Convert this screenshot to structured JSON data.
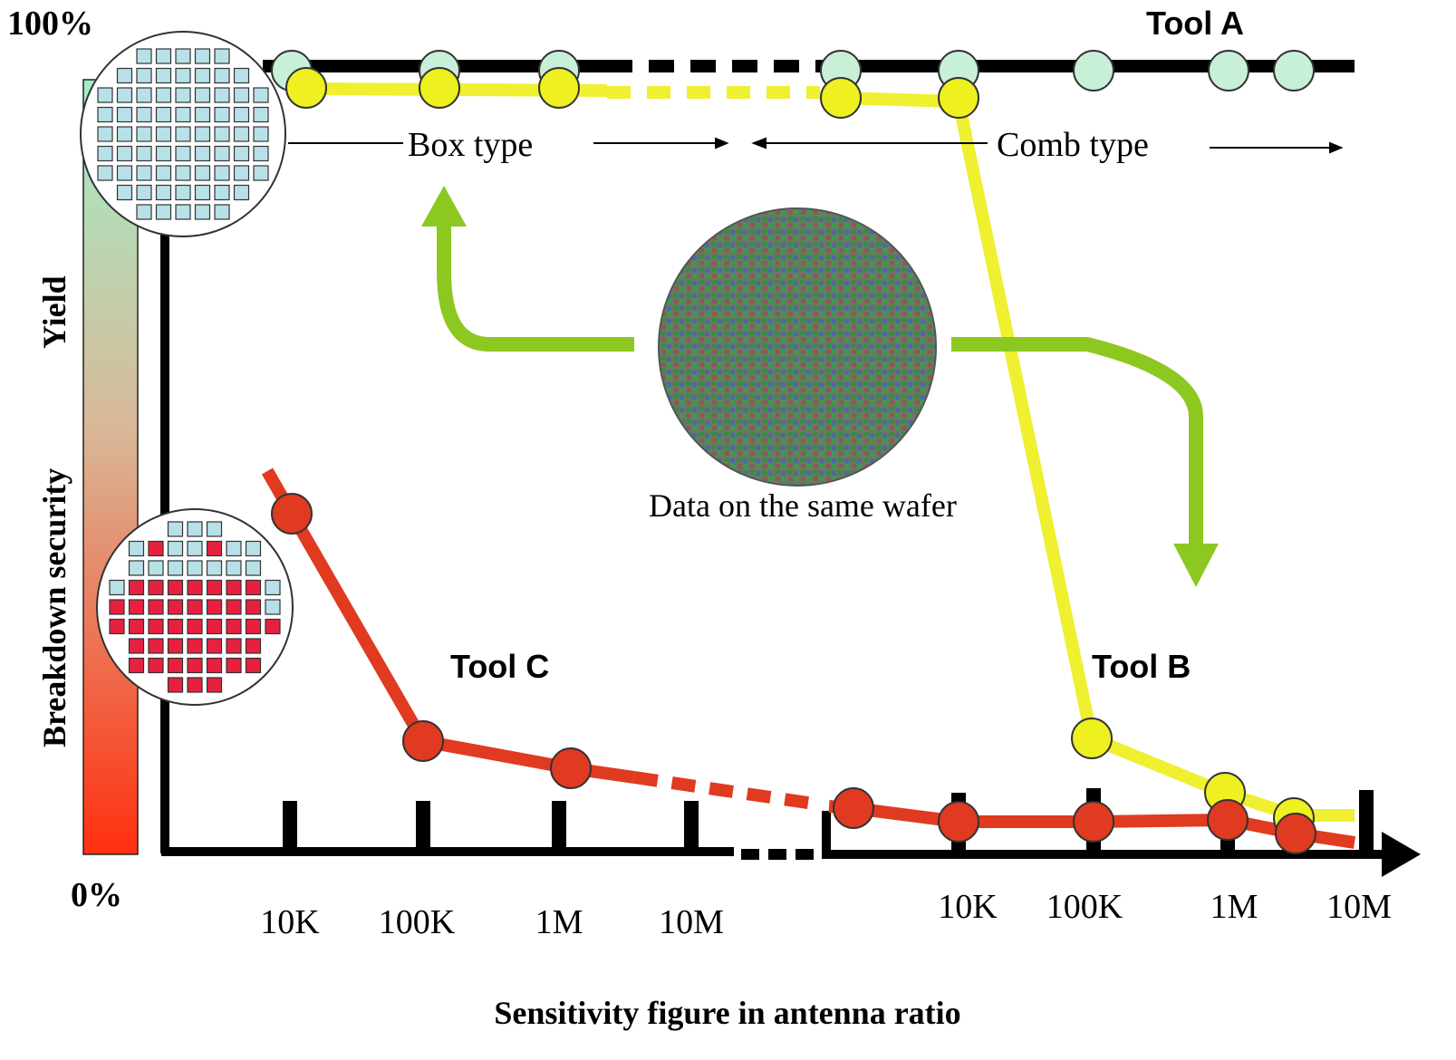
{
  "axis": {
    "y_top": "100%",
    "y_bottom": "0%",
    "y_title": "Breakdown security",
    "y_title_2": "Yield",
    "x_title": "Sensitivity figure in antenna ratio",
    "x_labels_left": [
      "10K",
      "100K",
      "1M",
      "10M"
    ],
    "x_labels_right": [
      "10K",
      "100K",
      "1M",
      "10M"
    ]
  },
  "labels": {
    "tool_a": "Tool A",
    "tool_b": "Tool B",
    "tool_c": "Tool C",
    "box_type": "Box type",
    "comb_type": "Comb type",
    "wafer_caption": "Data on the same wafer"
  }
}
